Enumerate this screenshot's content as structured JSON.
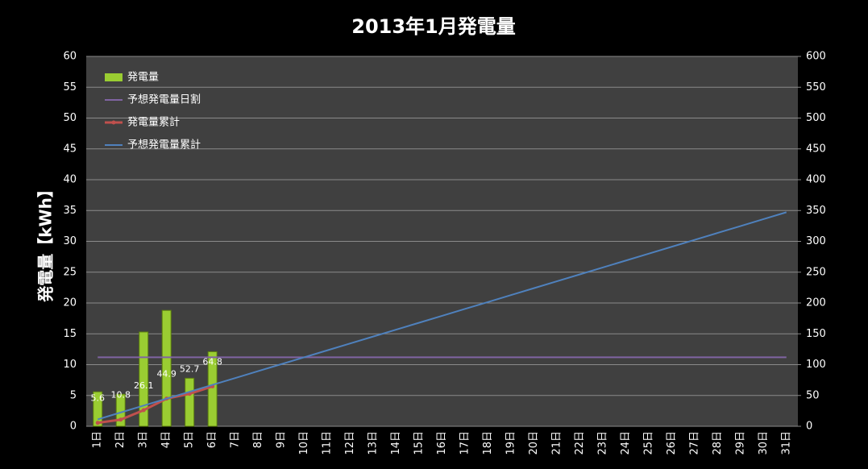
{
  "chart_data": {
    "type": "bar_line_combo",
    "title": "2013年1月発電量",
    "y_label": "発電量【kWh】",
    "categories": [
      "1日",
      "2日",
      "3日",
      "4日",
      "5日",
      "6日",
      "7日",
      "8日",
      "9日",
      "10日",
      "11日",
      "12日",
      "13日",
      "14日",
      "15日",
      "16日",
      "17日",
      "18日",
      "19日",
      "20日",
      "21日",
      "22日",
      "23日",
      "24日",
      "25日",
      "26日",
      "27日",
      "28日",
      "29日",
      "30日",
      "31日"
    ],
    "ylim": [
      0,
      60
    ],
    "yticks": [
      0,
      5,
      10,
      15,
      20,
      25,
      30,
      35,
      40,
      45,
      50,
      55,
      60
    ],
    "y2lim": [
      0,
      600
    ],
    "y2ticks": [
      0,
      50,
      100,
      150,
      200,
      250,
      300,
      350,
      400,
      450,
      500,
      550,
      600
    ],
    "grid": true,
    "legend": "top-left",
    "series": [
      {
        "name": "発電量",
        "type": "bar",
        "color": "#9acd32",
        "values": [
          5.6,
          5.2,
          15.3,
          18.8,
          7.8,
          12.1,
          null,
          null,
          null,
          null,
          null,
          null,
          null,
          null,
          null,
          null,
          null,
          null,
          null,
          null,
          null,
          null,
          null,
          null,
          null,
          null,
          null,
          null,
          null,
          null,
          null
        ]
      },
      {
        "name": "予想発電量日割",
        "type": "line",
        "color": "#8064a2",
        "values": [
          11.2,
          11.2,
          11.2,
          11.2,
          11.2,
          11.2,
          11.2,
          11.2,
          11.2,
          11.2,
          11.2,
          11.2,
          11.2,
          11.2,
          11.2,
          11.2,
          11.2,
          11.2,
          11.2,
          11.2,
          11.2,
          11.2,
          11.2,
          11.2,
          11.2,
          11.2,
          11.2,
          11.2,
          11.2,
          11.2,
          11.2
        ]
      },
      {
        "name": "発電量累計",
        "type": "line",
        "axis": "y2",
        "color": "#c0504d",
        "markers": true,
        "data_labels": true,
        "values": [
          5.6,
          10.8,
          26.1,
          44.9,
          52.7,
          64.8,
          null,
          null,
          null,
          null,
          null,
          null,
          null,
          null,
          null,
          null,
          null,
          null,
          null,
          null,
          null,
          null,
          null,
          null,
          null,
          null,
          null,
          null,
          null,
          null,
          null
        ]
      },
      {
        "name": "予想発電量累計",
        "type": "line",
        "axis": "y2",
        "color": "#4f81bd",
        "values": [
          11.2,
          22.4,
          33.6,
          44.8,
          56,
          67.2,
          78.4,
          89.6,
          100.8,
          112,
          123.2,
          134.4,
          145.6,
          156.8,
          168,
          179.2,
          190.4,
          201.6,
          212.8,
          224,
          235.2,
          246.4,
          257.6,
          268.8,
          280,
          291.2,
          302.4,
          313.6,
          324.8,
          336,
          347.2
        ]
      }
    ]
  }
}
